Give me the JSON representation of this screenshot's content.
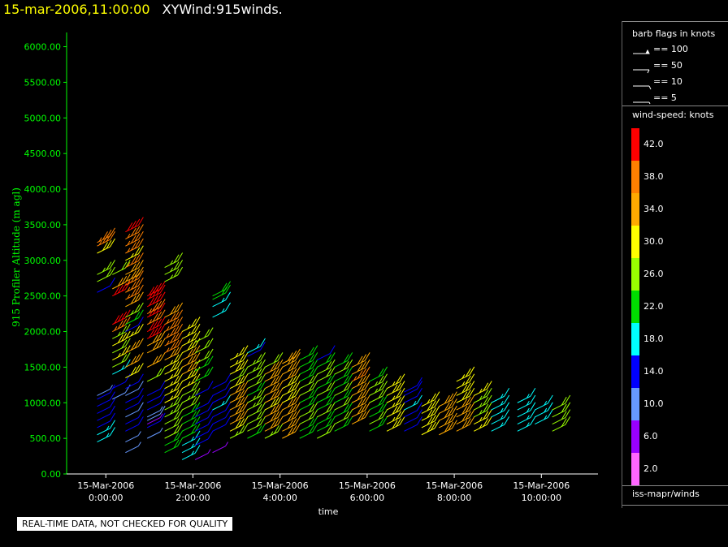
{
  "header": {
    "datetime": "15-mar-2006,11:00:00",
    "title": "XYWind:915winds."
  },
  "chart_data": {
    "type": "scatter",
    "xlabel": "time",
    "ylabel": "915 Profiler Altitude (m agl)",
    "ylim": [
      0,
      6200
    ],
    "y_ticks": [
      "0.00",
      "500.00",
      "1000.00",
      "1500.00",
      "2000.00",
      "2500.00",
      "3000.00",
      "3500.00",
      "4000.00",
      "4500.00",
      "5000.00",
      "5500.00",
      "6000.00"
    ],
    "x_ticks": [
      {
        "hour": 0,
        "date": "15-Mar-2006",
        "time": "0:00:00"
      },
      {
        "hour": 2,
        "date": "15-Mar-2006",
        "time": "2:00:00"
      },
      {
        "hour": 4,
        "date": "15-Mar-2006",
        "time": "4:00:00"
      },
      {
        "hour": 6,
        "date": "15-Mar-2006",
        "time": "6:00:00"
      },
      {
        "hour": 8,
        "date": "15-Mar-2006",
        "time": "8:00:00"
      },
      {
        "hour": 10,
        "date": "15-Mar-2006",
        "time": "10:00:00"
      }
    ],
    "xlim_hours": [
      -0.9,
      11.3
    ],
    "columns": [
      {
        "t": -0.2,
        "alts": [
          450,
          550,
          650,
          750,
          850,
          950,
          1050,
          1100,
          2550,
          2700,
          2800,
          3100,
          3200,
          3250
        ],
        "speeds": [
          18,
          17,
          13,
          13,
          14,
          14,
          12,
          8,
          14,
          24,
          26,
          30,
          36,
          38
        ]
      },
      {
        "t": 0.15,
        "alts": [
          1050,
          1200,
          1400,
          1500,
          1600,
          1700,
          1800,
          1900,
          2000,
          2100,
          2500,
          2600,
          2800
        ],
        "speeds": [
          10,
          14,
          18,
          24,
          28,
          24,
          30,
          26,
          36,
          40,
          40,
          34,
          24
        ]
      },
      {
        "t": 0.45,
        "alts": [
          300,
          450,
          600,
          700,
          800,
          900,
          1000,
          1100,
          1200,
          1350,
          1500,
          1700,
          1900,
          2000,
          2100,
          2200,
          2350,
          2450,
          2550,
          2650,
          2700,
          2800,
          2900,
          3000,
          3100,
          3200,
          3300,
          3400
        ],
        "speeds": [
          8,
          8,
          14,
          14,
          10,
          14,
          14,
          10,
          14,
          30,
          34,
          32,
          28,
          14,
          22,
          26,
          32,
          36,
          36,
          36,
          34,
          32,
          36,
          28,
          36,
          38,
          38,
          40
        ]
      },
      {
        "t": 0.95,
        "alts": [
          500,
          650,
          700,
          750,
          800,
          900,
          1000,
          1100,
          1300,
          1500,
          1700,
          1800,
          1900,
          2000,
          2100,
          2200,
          2250,
          2350,
          2450,
          2500
        ],
        "speeds": [
          8,
          14,
          6,
          10,
          8,
          14,
          14,
          14,
          24,
          32,
          34,
          34,
          40,
          40,
          36,
          40,
          36,
          40,
          42,
          40
        ]
      },
      {
        "t": 1.35,
        "alts": [
          300,
          400,
          500,
          600,
          700,
          800,
          900,
          1000,
          1100,
          1200,
          1300,
          1400,
          1500,
          1600,
          1700,
          1800,
          1900,
          2000,
          2100,
          2200,
          2700,
          2800,
          2900
        ],
        "speeds": [
          20,
          22,
          24,
          24,
          24,
          26,
          26,
          28,
          28,
          28,
          28,
          30,
          28,
          32,
          36,
          36,
          38,
          38,
          36,
          34,
          26,
          26,
          26
        ]
      },
      {
        "t": 1.75,
        "alts": [
          200,
          300,
          400,
          500,
          600,
          700,
          800,
          900,
          1000,
          1100,
          1200,
          1300,
          1400,
          1500,
          1600,
          1700,
          1800,
          1900,
          2000
        ],
        "speeds": [
          18,
          18,
          18,
          20,
          22,
          22,
          22,
          24,
          26,
          24,
          28,
          30,
          32,
          34,
          34,
          30,
          28,
          28,
          28
        ]
      },
      {
        "t": 2.05,
        "alts": [
          200,
          400,
          500,
          600,
          700,
          800,
          900,
          1100,
          1300,
          1450,
          1550,
          1700,
          1850
        ],
        "speeds": [
          6,
          14,
          14,
          14,
          14,
          14,
          14,
          14,
          22,
          22,
          24,
          24,
          24
        ]
      },
      {
        "t": 2.45,
        "alts": [
          300,
          600,
          700,
          800,
          900,
          1000,
          1100,
          1200,
          2200,
          2350,
          2450,
          2500
        ],
        "speeds": [
          6,
          14,
          12,
          12,
          16,
          14,
          14,
          14,
          18,
          18,
          22,
          22
        ]
      },
      {
        "t": 2.85,
        "alts": [
          500,
          600,
          700,
          800,
          900,
          1000,
          1100,
          1200,
          1300,
          1400,
          1500,
          1600
        ],
        "speeds": [
          26,
          30,
          34,
          34,
          34,
          32,
          34,
          30,
          24,
          30,
          28,
          28
        ]
      },
      {
        "t": 3.25,
        "alts": [
          500,
          600,
          700,
          800,
          900,
          1000,
          1100,
          1200,
          1300,
          1400,
          1500,
          1650,
          1700
        ],
        "speeds": [
          22,
          24,
          24,
          24,
          26,
          26,
          22,
          24,
          24,
          26,
          26,
          14,
          18
        ]
      },
      {
        "t": 3.65,
        "alts": [
          500,
          600,
          700,
          800,
          900,
          1000,
          1100,
          1200,
          1300,
          1400,
          1500
        ],
        "speeds": [
          26,
          34,
          34,
          34,
          30,
          34,
          34,
          32,
          34,
          34,
          24
        ]
      },
      {
        "t": 4.05,
        "alts": [
          500,
          600,
          700,
          800,
          900,
          1000,
          1100,
          1200,
          1300,
          1400,
          1500,
          1550
        ],
        "speeds": [
          34,
          34,
          34,
          34,
          34,
          30,
          30,
          30,
          32,
          34,
          34,
          32
        ]
      },
      {
        "t": 4.45,
        "alts": [
          500,
          600,
          700,
          800,
          900,
          1000,
          1100,
          1200,
          1300,
          1400,
          1500,
          1600
        ],
        "speeds": [
          22,
          22,
          24,
          24,
          22,
          22,
          24,
          24,
          22,
          22,
          22,
          22
        ]
      },
      {
        "t": 4.85,
        "alts": [
          500,
          600,
          700,
          800,
          900,
          1000,
          1100,
          1200,
          1300,
          1400,
          1500,
          1600
        ],
        "speeds": [
          24,
          22,
          22,
          24,
          22,
          22,
          24,
          22,
          24,
          24,
          22,
          14
        ]
      },
      {
        "t": 5.25,
        "alts": [
          600,
          700,
          800,
          900,
          1000,
          1100,
          1200,
          1300,
          1400,
          1500
        ],
        "speeds": [
          22,
          24,
          22,
          24,
          22,
          24,
          22,
          22,
          24,
          22
        ]
      },
      {
        "t": 5.65,
        "alts": [
          700,
          800,
          900,
          1000,
          1100,
          1200,
          1300,
          1400,
          1500
        ],
        "speeds": [
          34,
          34,
          34,
          34,
          32,
          34,
          36,
          34,
          34
        ]
      },
      {
        "t": 6.05,
        "alts": [
          600,
          700,
          800,
          900,
          1000,
          1100,
          1200,
          1300
        ],
        "speeds": [
          22,
          24,
          22,
          22,
          24,
          26,
          26,
          22
        ]
      },
      {
        "t": 6.45,
        "alts": [
          600,
          700,
          800,
          900,
          1000,
          1100,
          1200
        ],
        "speeds": [
          30,
          28,
          30,
          28,
          28,
          30,
          28
        ]
      },
      {
        "t": 6.85,
        "alts": [
          600,
          700,
          800,
          900,
          1000,
          1100,
          1150
        ],
        "speeds": [
          14,
          14,
          14,
          16,
          14,
          14,
          14
        ]
      },
      {
        "t": 7.25,
        "alts": [
          550,
          650,
          750,
          850,
          950
        ],
        "speeds": [
          30,
          30,
          30,
          30,
          28
        ]
      },
      {
        "t": 7.65,
        "alts": [
          550,
          650,
          750,
          850,
          950
        ],
        "speeds": [
          34,
          34,
          34,
          34,
          34
        ]
      },
      {
        "t": 8.05,
        "alts": [
          600,
          700,
          800,
          900,
          1000,
          1100,
          1200,
          1300
        ],
        "speeds": [
          34,
          34,
          32,
          32,
          30,
          30,
          28,
          28
        ]
      },
      {
        "t": 8.45,
        "alts": [
          600,
          700,
          800,
          900,
          1000,
          1100
        ],
        "speeds": [
          28,
          28,
          26,
          26,
          26,
          28
        ]
      },
      {
        "t": 8.85,
        "alts": [
          600,
          700,
          800,
          900,
          1000
        ],
        "speeds": [
          18,
          18,
          18,
          18,
          18
        ]
      },
      {
        "t": 9.45,
        "alts": [
          600,
          700,
          800,
          900,
          1000
        ],
        "speeds": [
          18,
          18,
          18,
          18,
          18
        ]
      },
      {
        "t": 9.85,
        "alts": [
          700,
          800,
          900
        ],
        "speeds": [
          18,
          18,
          18
        ]
      },
      {
        "t": 10.25,
        "alts": [
          600,
          700,
          800,
          900
        ],
        "speeds": [
          24,
          24,
          24,
          24
        ]
      }
    ],
    "colorbar": [
      {
        "label": "42.0",
        "color": "#ff0000"
      },
      {
        "label": "38.0",
        "color": "#ff8000"
      },
      {
        "label": "34.0",
        "color": "#ffaa00"
      },
      {
        "label": "30.0",
        "color": "#ffff00"
      },
      {
        "label": "26.0",
        "color": "#99ff00"
      },
      {
        "label": "22.0",
        "color": "#00dd00"
      },
      {
        "label": "18.0",
        "color": "#00ffff"
      },
      {
        "label": "14.0",
        "color": "#0000ff"
      },
      {
        "label": "10.0",
        "color": "#6699ff"
      },
      {
        "label": "6.0",
        "color": "#9900ff"
      },
      {
        "label": "2.0",
        "color": "#ff66ff"
      }
    ],
    "colors": {
      "axis": "#00ff00",
      "background": "#000000"
    }
  },
  "legend": {
    "barb_title": "barb flags in knots",
    "barbs": [
      "== 100",
      "== 50",
      "== 10",
      "== 5"
    ],
    "speed_title": "wind-speed: knots",
    "source": "iss-mapr/winds"
  },
  "footer": {
    "qc_note": "REAL-TIME DATA, NOT CHECKED FOR QUALITY"
  }
}
